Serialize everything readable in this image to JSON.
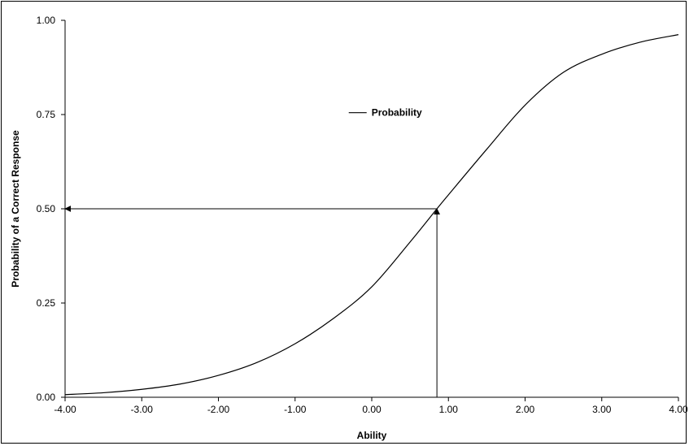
{
  "chart_data": {
    "type": "line",
    "title": "",
    "xlabel": "Ability",
    "ylabel": "Probability of a Correct Response",
    "xlim": [
      -4,
      4
    ],
    "ylim": [
      0,
      1
    ],
    "xticks": [
      -4,
      -3,
      -2,
      -1,
      0,
      1,
      2,
      3,
      4
    ],
    "xtick_labels": [
      "-4.00",
      "-3.00",
      "-2.00",
      "-1.00",
      "0.00",
      "1.00",
      "2.00",
      "3.00",
      "4.00"
    ],
    "yticks": [
      0,
      0.25,
      0.5,
      0.75,
      1
    ],
    "ytick_labels": [
      "0.00",
      "0.25",
      "0.50",
      "0.75",
      "1.00"
    ],
    "grid": false,
    "legend": {
      "position": "upper-middle",
      "entries": [
        "Probability"
      ]
    },
    "series": [
      {
        "name": "Probability",
        "x": [
          -4,
          -3.5,
          -3,
          -2.5,
          -2,
          -1.5,
          -1,
          -0.5,
          0,
          0.5,
          0.85,
          1,
          1.5,
          2,
          2.5,
          3,
          3.5,
          4
        ],
        "y": [
          0.007,
          0.012,
          0.021,
          0.035,
          0.058,
          0.092,
          0.142,
          0.209,
          0.293,
          0.412,
          0.5,
          0.537,
          0.658,
          0.775,
          0.862,
          0.91,
          0.942,
          0.962
        ],
        "color": "#000000"
      }
    ],
    "annotations": [
      {
        "type": "arrow",
        "from": [
          0.85,
          0
        ],
        "to": [
          0.85,
          0.5
        ]
      },
      {
        "type": "arrow",
        "from": [
          0.85,
          0.5
        ],
        "to": [
          -4,
          0.5
        ]
      }
    ]
  }
}
